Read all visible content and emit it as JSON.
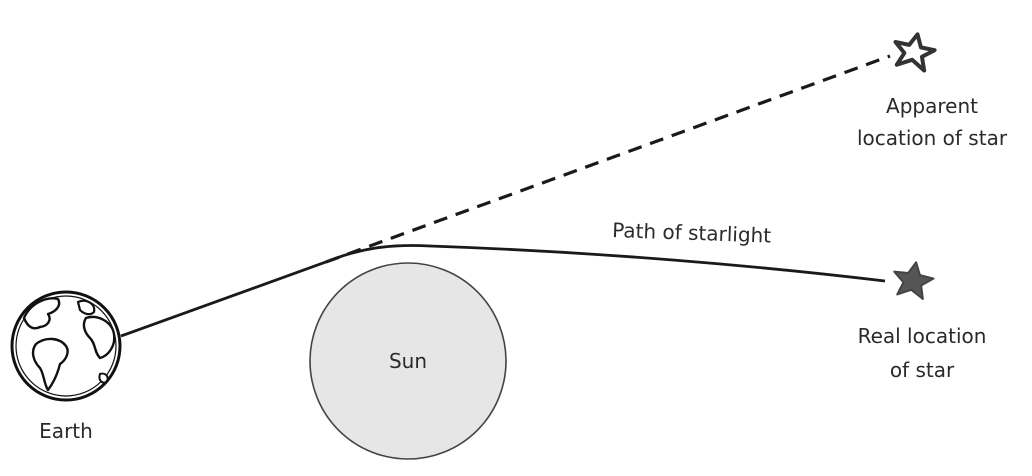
{
  "labels": {
    "apparent_line1": "Apparent",
    "apparent_line2": "location of star",
    "path": "Path of starlight",
    "sun": "Sun",
    "real_line1": "Real location",
    "real_line2": "of star",
    "earth": "Earth"
  },
  "colors": {
    "line": "#1a1a1a",
    "sun_fill": "#e6e6e6",
    "real_star_fill": "#555555",
    "apparent_star_fill": "#ffffff",
    "text": "#2a2a2a"
  },
  "icons": {
    "earth": "globe-icon",
    "real_star": "filled-star-icon",
    "apparent_star": "outline-star-icon"
  }
}
